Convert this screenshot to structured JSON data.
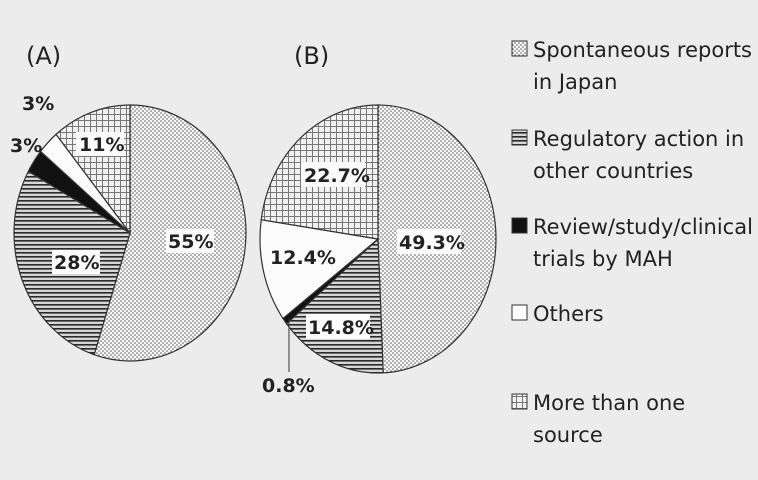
{
  "chart_data": [
    {
      "type": "pie",
      "panel_label": "(A)",
      "slices": [
        {
          "label": "Spontaneous reports in Japan",
          "value": 55,
          "text": "55%"
        },
        {
          "label": "Regulatory action in other countries",
          "value": 28,
          "text": "28%"
        },
        {
          "label": "Review/study/clinical trials by MAH",
          "value": 3,
          "text": "3%"
        },
        {
          "label": "Others",
          "value": 3,
          "text": "3%"
        },
        {
          "label": "More than one source",
          "value": 11,
          "text": "11%"
        }
      ]
    },
    {
      "type": "pie",
      "panel_label": "(B)",
      "slices": [
        {
          "label": "Spontaneous reports in Japan",
          "value": 49.3,
          "text": "49.3%"
        },
        {
          "label": "Regulatory action in other countries",
          "value": 14.8,
          "text": "14.8%"
        },
        {
          "label": "Review/study/clinical trials by MAH",
          "value": 0.8,
          "text": "0.8%"
        },
        {
          "label": "Others",
          "value": 12.4,
          "text": "12.4%"
        },
        {
          "label": "More than one source",
          "value": 22.7,
          "text": "22.7%"
        }
      ]
    }
  ],
  "legend": [
    {
      "lines": [
        "Spontaneous reports",
        "in Japan"
      ],
      "pattern": "dots"
    },
    {
      "lines": [
        "Regulatory action in",
        "other countries"
      ],
      "pattern": "hlines"
    },
    {
      "lines": [
        "Review/study/clinical",
        "trials by MAH"
      ],
      "pattern": "solid"
    },
    {
      "lines": [
        "Others"
      ],
      "pattern": "white"
    },
    {
      "lines": [
        "More than one",
        "source"
      ],
      "pattern": "grid"
    }
  ],
  "colors": {
    "background": "#ececec",
    "stroke": "#333333",
    "solid": "#111111"
  }
}
